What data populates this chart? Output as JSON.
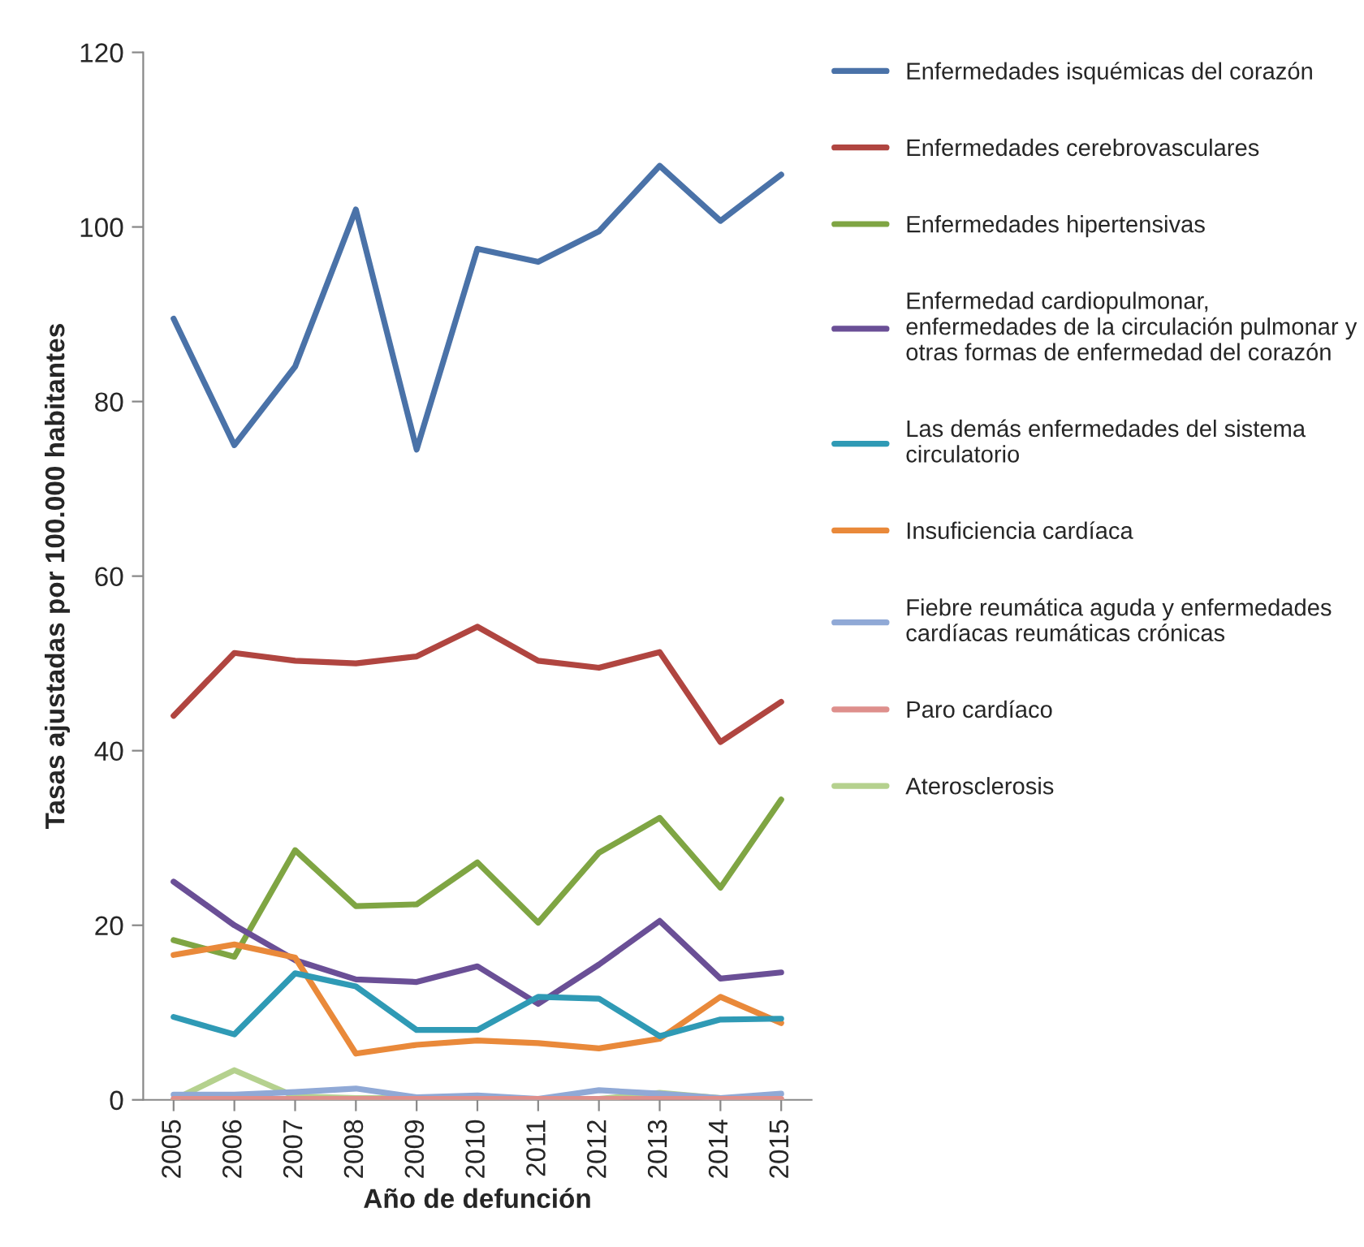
{
  "chart_data": {
    "type": "line",
    "xlabel": "Año de defunción",
    "ylabel": "Tasas ajustadas por 100.000 habitantes",
    "categories": [
      "2005",
      "2006",
      "2007",
      "2008",
      "2009",
      "2010",
      "2011",
      "2012",
      "2013",
      "2014",
      "2015"
    ],
    "ylim": [
      0,
      120
    ],
    "yticks": [
      0,
      20,
      40,
      60,
      80,
      100,
      120
    ],
    "grid": false,
    "legend": "right",
    "marker": "none",
    "series": [
      {
        "name": "Enfermedades isquémicas del corazón",
        "color": "#4a72a8",
        "values": [
          89.5,
          75,
          84,
          102,
          74.5,
          97.5,
          96,
          99.5,
          107,
          100.7,
          106
        ]
      },
      {
        "name": "Enfermedades cerebrovasculares",
        "color": "#b04540",
        "values": [
          44,
          51.2,
          50.3,
          50,
          50.8,
          54.2,
          50.3,
          49.5,
          51.3,
          41,
          45.6
        ]
      },
      {
        "name": "Enfermedades hipertensivas",
        "color": "#7fa543",
        "values": [
          18.3,
          16.4,
          28.6,
          22.2,
          22.4,
          27.2,
          20.3,
          28.3,
          32.3,
          24.3,
          34.4
        ]
      },
      {
        "name": "Enfermedad cardiopulmonar,\nenfermedades de la circulación pulmonar y\notras formas de enfermedad del corazón",
        "color": "#6a4f96",
        "values": [
          25,
          20,
          16,
          13.8,
          13.5,
          15.3,
          11,
          15.5,
          20.5,
          13.9,
          14.6
        ]
      },
      {
        "name": "Las demás enfermedades del sistema\ncirculatorio",
        "color": "#2f9ab5",
        "values": [
          9.5,
          7.5,
          14.5,
          13,
          8,
          8,
          11.8,
          11.6,
          7.3,
          9.2,
          9.3
        ]
      },
      {
        "name": "Insuficiencia cardíaca",
        "color": "#e9893a",
        "values": [
          16.6,
          17.8,
          16.3,
          5.3,
          6.3,
          6.8,
          6.5,
          5.9,
          7,
          11.8,
          8.8
        ]
      },
      {
        "name": "Fiebre reumática aguda y enfermedades\ncardíacas reumáticas crónicas",
        "color": "#90a9d6",
        "values": [
          0.6,
          0.6,
          0.9,
          1.3,
          0.3,
          0.5,
          0.1,
          1.1,
          0.7,
          0.2,
          0.7
        ]
      },
      {
        "name": "Paro cardíaco",
        "color": "#de8f8c",
        "values": [
          0.1,
          0.1,
          0.1,
          0.1,
          0.1,
          0.1,
          0.1,
          0.1,
          0.1,
          0.1,
          0.1
        ]
      },
      {
        "name": "Aterosclerosis",
        "color": "#b5d18e",
        "values": [
          0,
          3.4,
          0.4,
          0.2,
          0.2,
          0.1,
          0.1,
          0.1,
          0.8,
          0.2,
          0
        ]
      }
    ]
  }
}
